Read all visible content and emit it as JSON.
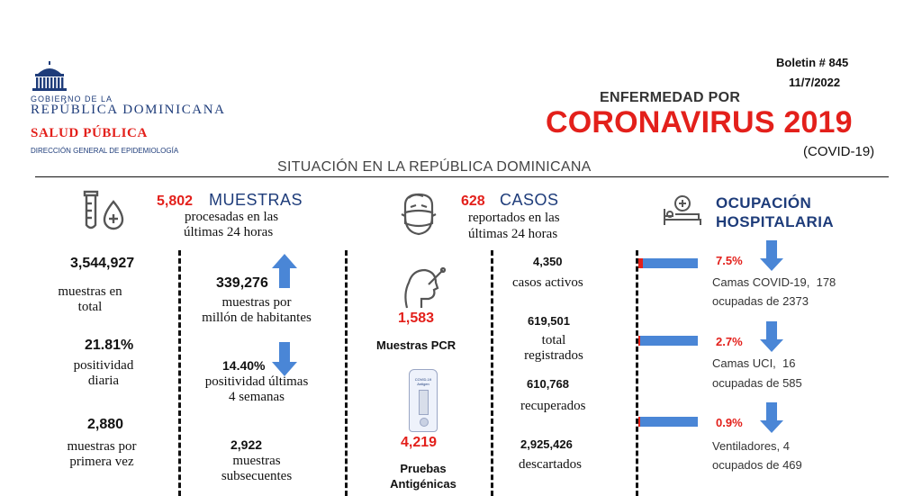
{
  "header": {
    "org_line1": "GOBIERNO DE LA",
    "org_line2": "REPÚBLICA DOMINICANA",
    "org_line3": "SALUD PÚBLICA",
    "org_line4": "DIRECCIÓN GENERAL DE EPIDEMIOLOGÍA",
    "bulletin": "Boletin # 845",
    "date": "11/7/2022",
    "title_small": "ENFERMEDAD POR",
    "title_big": "CORONAVIRUS 2019",
    "title_sub": "(COVID-19)",
    "subtitle": "SITUACIÓN EN LA REPÚBLICA DOMINICANA"
  },
  "colors": {
    "accent": "#e3201b",
    "bar": "#4a86d6",
    "line": "#111111"
  },
  "muestras": {
    "count": "5,802",
    "title": "MUESTRAS",
    "desc1": "procesadas en las",
    "desc2": "últimas 24 horas",
    "total_value": "3,544,927",
    "total_label1": "muestras en",
    "total_label2": "total",
    "pos_daily_value": "21.81%",
    "pos_daily_label1": "positividad",
    "pos_daily_label2": "diaria",
    "first_value": "2,880",
    "first_label1": "muestras por",
    "first_label2": "primera vez",
    "per_million_value": "339,276",
    "per_million_label1": "muestras por",
    "per_million_label2": "millón de habitantes",
    "pos_4w_value": "14.40%",
    "pos_4w_label1": "positividad últimas",
    "pos_4w_label2": "4 semanas",
    "subsequent_value": "2,922",
    "subsequent_label1": "muestras",
    "subsequent_label2": "subsecuentes"
  },
  "casos": {
    "count": "628",
    "title": "CASOS",
    "desc1": "reportados en las",
    "desc2": "últimas 24 horas",
    "pcr_value": "1,583",
    "pcr_label": "Muestras PCR",
    "antigen_value": "4,219",
    "antigen_label1": "Pruebas",
    "antigen_label2": "Antigénicas",
    "kit_label1": "COVID-19",
    "kit_label2": "Antigen",
    "active_value": "4,350",
    "active_label": "casos activos",
    "total_value": "619,501",
    "total_label1": "total",
    "total_label2": "registrados",
    "recovered_value": "610,768",
    "recovered_label": "recuperados",
    "discarded_value": "2,925,426",
    "discarded_label": "descartados"
  },
  "ocupacion": {
    "title1": "OCUPACIÓN",
    "title2": "HOSPITALARIA",
    "items": [
      {
        "pct": "7.5%",
        "fraction": 0.075,
        "label1": "Camas COVID-19,  178",
        "label2": "ocupadas de 2373"
      },
      {
        "pct": "2.7%",
        "fraction": 0.027,
        "label1": "Camas UCI,  16",
        "label2": "ocupadas de 585"
      },
      {
        "pct": "0.9%",
        "fraction": 0.009,
        "label1": "Ventiladores, 4",
        "label2": "ocupados de 469"
      }
    ]
  }
}
